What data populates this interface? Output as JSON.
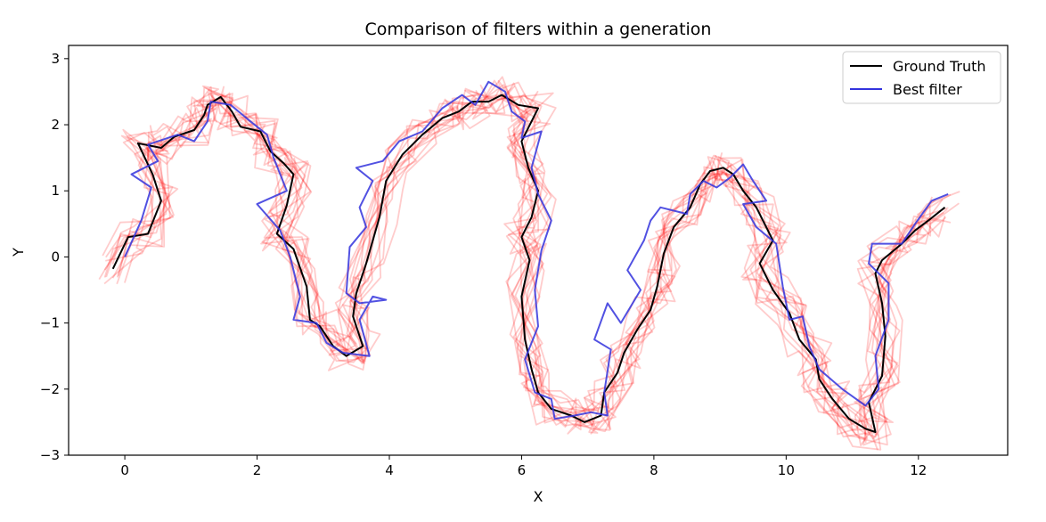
{
  "chart_data": {
    "type": "line",
    "title": "Comparison of filters within a generation",
    "xlabel": "X",
    "ylabel": "Y",
    "xlim": [
      -0.85,
      13.35
    ],
    "ylim": [
      -3,
      3.2
    ],
    "xticks": [
      0,
      2,
      4,
      6,
      8,
      10,
      12
    ],
    "yticks": [
      -3,
      -2,
      -1,
      0,
      1,
      2,
      3
    ],
    "grid": false,
    "legend_position": "top-right",
    "colors": {
      "ground_truth": "#000000",
      "best_filter": "#3333dd",
      "filter_population": "#ff0000"
    },
    "legend": [
      {
        "label": "Ground Truth",
        "color": "#000000"
      },
      {
        "label": "Best filter",
        "color": "#3333dd"
      }
    ],
    "series": [
      {
        "name": "Ground Truth",
        "points": [
          [
            -0.18,
            -0.18
          ],
          [
            0.05,
            0.3
          ],
          [
            0.35,
            0.35
          ],
          [
            0.55,
            0.85
          ],
          [
            0.42,
            1.25
          ],
          [
            0.2,
            1.72
          ],
          [
            0.55,
            1.65
          ],
          [
            0.75,
            1.82
          ],
          [
            1.05,
            1.92
          ],
          [
            1.2,
            2.15
          ],
          [
            1.25,
            2.3
          ],
          [
            1.45,
            2.42
          ],
          [
            1.62,
            2.2
          ],
          [
            1.75,
            1.97
          ],
          [
            2.05,
            1.9
          ],
          [
            2.2,
            1.6
          ],
          [
            2.4,
            1.42
          ],
          [
            2.55,
            1.25
          ],
          [
            2.45,
            0.78
          ],
          [
            2.3,
            0.35
          ],
          [
            2.55,
            0.12
          ],
          [
            2.75,
            -0.45
          ],
          [
            2.8,
            -0.95
          ],
          [
            2.95,
            -1.05
          ],
          [
            3.15,
            -1.35
          ],
          [
            3.35,
            -1.5
          ],
          [
            3.6,
            -1.35
          ],
          [
            3.45,
            -0.9
          ],
          [
            3.5,
            -0.55
          ],
          [
            3.65,
            -0.1
          ],
          [
            3.85,
            0.6
          ],
          [
            3.95,
            1.15
          ],
          [
            4.2,
            1.55
          ],
          [
            4.5,
            1.85
          ],
          [
            4.8,
            2.1
          ],
          [
            5.05,
            2.2
          ],
          [
            5.25,
            2.35
          ],
          [
            5.5,
            2.35
          ],
          [
            5.7,
            2.45
          ],
          [
            5.95,
            2.3
          ],
          [
            6.25,
            2.25
          ],
          [
            6.0,
            1.75
          ],
          [
            6.1,
            1.35
          ],
          [
            6.25,
            1.0
          ],
          [
            6.15,
            0.6
          ],
          [
            6.0,
            0.3
          ],
          [
            6.12,
            -0.05
          ],
          [
            6.0,
            -0.6
          ],
          [
            6.05,
            -1.25
          ],
          [
            6.15,
            -1.7
          ],
          [
            6.25,
            -2.05
          ],
          [
            6.45,
            -2.3
          ],
          [
            6.75,
            -2.4
          ],
          [
            6.95,
            -2.5
          ],
          [
            7.2,
            -2.4
          ],
          [
            7.25,
            -2.05
          ],
          [
            7.45,
            -1.75
          ],
          [
            7.55,
            -1.45
          ],
          [
            7.75,
            -1.1
          ],
          [
            7.95,
            -0.8
          ],
          [
            8.05,
            -0.45
          ],
          [
            8.15,
            0.05
          ],
          [
            8.3,
            0.45
          ],
          [
            8.55,
            0.75
          ],
          [
            8.7,
            1.1
          ],
          [
            8.85,
            1.3
          ],
          [
            9.05,
            1.35
          ],
          [
            9.2,
            1.25
          ],
          [
            9.35,
            1.0
          ],
          [
            9.55,
            0.75
          ],
          [
            9.8,
            0.25
          ],
          [
            9.6,
            -0.1
          ],
          [
            9.8,
            -0.5
          ],
          [
            10.05,
            -0.85
          ],
          [
            10.2,
            -1.25
          ],
          [
            10.45,
            -1.55
          ],
          [
            10.5,
            -1.85
          ],
          [
            10.7,
            -2.15
          ],
          [
            10.95,
            -2.45
          ],
          [
            11.2,
            -2.6
          ],
          [
            11.35,
            -2.65
          ],
          [
            11.25,
            -2.2
          ],
          [
            11.45,
            -1.8
          ],
          [
            11.5,
            -1.2
          ],
          [
            11.45,
            -0.7
          ],
          [
            11.35,
            -0.25
          ],
          [
            11.45,
            -0.05
          ],
          [
            11.75,
            0.2
          ],
          [
            11.95,
            0.4
          ],
          [
            12.15,
            0.55
          ],
          [
            12.4,
            0.75
          ]
        ]
      },
      {
        "name": "Best filter",
        "points": [
          [
            0.0,
            0.0
          ],
          [
            0.25,
            0.55
          ],
          [
            0.4,
            1.05
          ],
          [
            0.1,
            1.25
          ],
          [
            0.5,
            1.45
          ],
          [
            0.35,
            1.7
          ],
          [
            0.8,
            1.85
          ],
          [
            1.05,
            1.75
          ],
          [
            1.25,
            2.05
          ],
          [
            1.3,
            2.35
          ],
          [
            1.6,
            2.3
          ],
          [
            1.9,
            2.05
          ],
          [
            2.15,
            1.85
          ],
          [
            2.25,
            1.5
          ],
          [
            2.45,
            1.0
          ],
          [
            2.0,
            0.8
          ],
          [
            2.35,
            0.4
          ],
          [
            2.5,
            0.0
          ],
          [
            2.65,
            -0.6
          ],
          [
            2.55,
            -0.95
          ],
          [
            2.9,
            -1.0
          ],
          [
            3.05,
            -1.3
          ],
          [
            3.3,
            -1.45
          ],
          [
            3.7,
            -1.5
          ],
          [
            3.55,
            -0.95
          ],
          [
            3.75,
            -0.6
          ],
          [
            3.95,
            -0.65
          ],
          [
            3.55,
            -0.7
          ],
          [
            3.35,
            -0.55
          ],
          [
            3.4,
            0.15
          ],
          [
            3.65,
            0.45
          ],
          [
            3.55,
            0.75
          ],
          [
            3.75,
            1.15
          ],
          [
            3.5,
            1.35
          ],
          [
            3.9,
            1.45
          ],
          [
            4.15,
            1.75
          ],
          [
            4.5,
            1.9
          ],
          [
            4.8,
            2.25
          ],
          [
            5.1,
            2.45
          ],
          [
            5.3,
            2.3
          ],
          [
            5.5,
            2.65
          ],
          [
            5.75,
            2.5
          ],
          [
            5.85,
            2.2
          ],
          [
            6.05,
            2.05
          ],
          [
            6.0,
            1.8
          ],
          [
            6.3,
            1.9
          ],
          [
            6.15,
            1.35
          ],
          [
            6.25,
            0.95
          ],
          [
            6.45,
            0.55
          ],
          [
            6.3,
            0.1
          ],
          [
            6.2,
            -0.5
          ],
          [
            6.25,
            -1.05
          ],
          [
            6.05,
            -1.55
          ],
          [
            6.2,
            -2.05
          ],
          [
            6.45,
            -2.15
          ],
          [
            6.5,
            -2.45
          ],
          [
            6.8,
            -2.4
          ],
          [
            7.05,
            -2.35
          ],
          [
            7.3,
            -2.4
          ],
          [
            7.25,
            -2.05
          ],
          [
            7.35,
            -1.4
          ],
          [
            7.1,
            -1.25
          ],
          [
            7.3,
            -0.7
          ],
          [
            7.5,
            -1.0
          ],
          [
            7.8,
            -0.5
          ],
          [
            7.6,
            -0.2
          ],
          [
            7.85,
            0.25
          ],
          [
            7.95,
            0.55
          ],
          [
            8.1,
            0.75
          ],
          [
            8.5,
            0.65
          ],
          [
            8.55,
            0.95
          ],
          [
            8.75,
            1.15
          ],
          [
            8.95,
            1.05
          ],
          [
            9.15,
            1.2
          ],
          [
            9.35,
            1.4
          ],
          [
            9.5,
            1.15
          ],
          [
            9.7,
            0.85
          ],
          [
            9.35,
            0.8
          ],
          [
            9.55,
            0.45
          ],
          [
            9.85,
            0.2
          ],
          [
            9.95,
            -0.45
          ],
          [
            10.05,
            -0.95
          ],
          [
            10.25,
            -0.9
          ],
          [
            10.35,
            -1.35
          ],
          [
            10.5,
            -1.7
          ],
          [
            10.85,
            -2.0
          ],
          [
            11.2,
            -2.25
          ],
          [
            11.4,
            -2.0
          ],
          [
            11.35,
            -1.5
          ],
          [
            11.55,
            -0.95
          ],
          [
            11.55,
            -0.4
          ],
          [
            11.25,
            -0.1
          ],
          [
            11.3,
            0.2
          ],
          [
            11.75,
            0.2
          ],
          [
            11.95,
            0.5
          ],
          [
            12.2,
            0.85
          ],
          [
            12.45,
            0.95
          ]
        ]
      }
    ]
  }
}
